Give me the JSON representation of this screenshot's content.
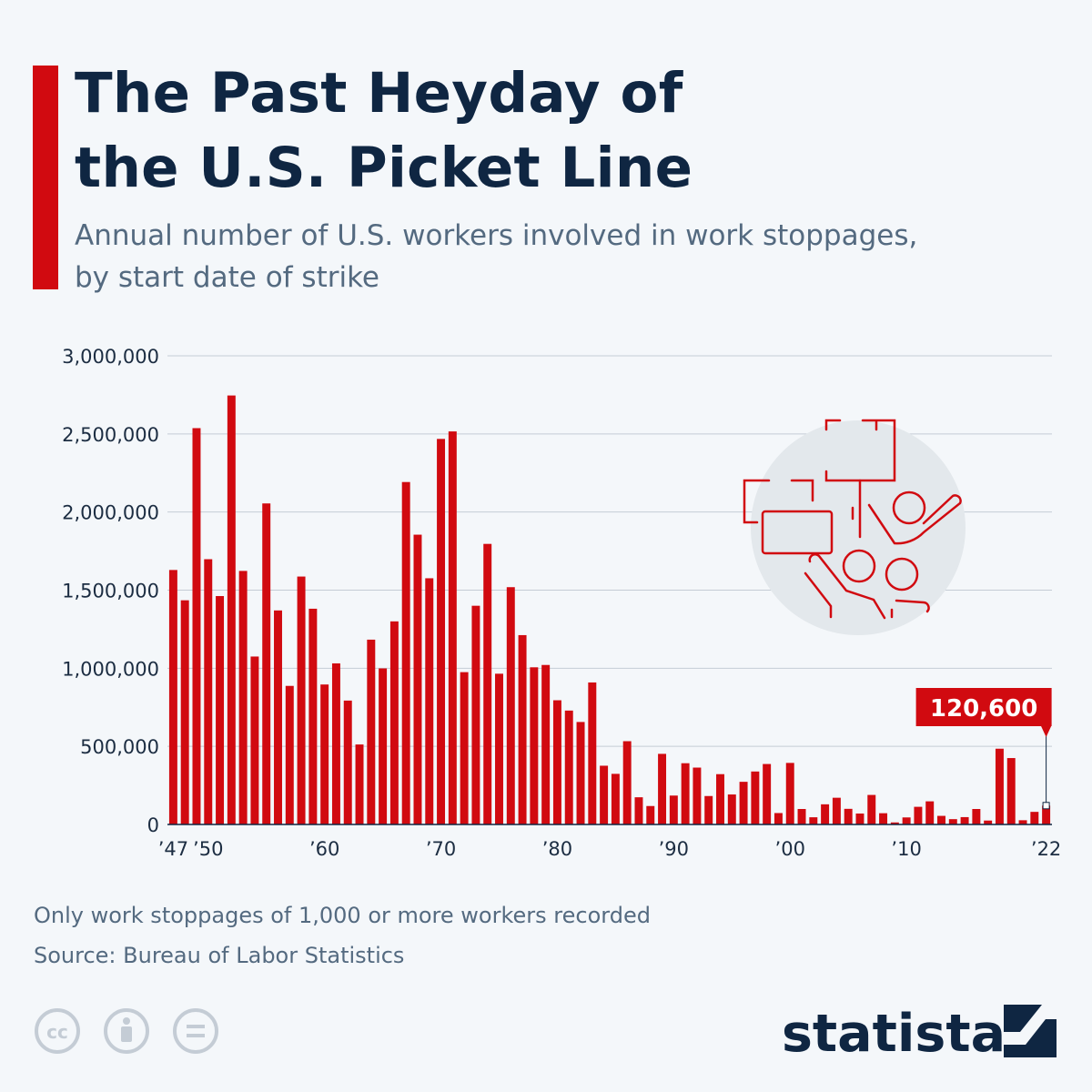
{
  "title_line1": "The Past Heyday of",
  "title_line2": "the U.S. Picket Line",
  "subtitle_line1": "Annual number of U.S. workers involved in work stoppages,",
  "subtitle_line2": "by start date of strike",
  "note": "Only work stoppages of 1,000 or more workers recorded",
  "source": "Source: Bureau of Labor Statistics",
  "brand": "statista",
  "icons": [
    "cc-icon",
    "attribution-icon",
    "no-derivatives-icon",
    "statista-logo-icon",
    "picket-line-illustration-icon"
  ],
  "colors": {
    "bar": "#d10a10",
    "title": "#0f2642",
    "text": "#546a80",
    "background": "#f4f7fa"
  },
  "chart_data": {
    "type": "bar",
    "x": [
      1947,
      1948,
      1949,
      1950,
      1951,
      1952,
      1953,
      1954,
      1955,
      1956,
      1957,
      1958,
      1959,
      1960,
      1961,
      1962,
      1963,
      1964,
      1965,
      1966,
      1967,
      1968,
      1969,
      1970,
      1971,
      1972,
      1973,
      1974,
      1975,
      1976,
      1977,
      1978,
      1979,
      1980,
      1981,
      1982,
      1983,
      1984,
      1985,
      1986,
      1987,
      1988,
      1989,
      1990,
      1991,
      1992,
      1993,
      1994,
      1995,
      1996,
      1997,
      1998,
      1999,
      2000,
      2001,
      2002,
      2003,
      2004,
      2005,
      2006,
      2007,
      2008,
      2009,
      2010,
      2011,
      2012,
      2013,
      2014,
      2015,
      2016,
      2017,
      2018,
      2019,
      2020,
      2021,
      2022
    ],
    "values": [
      1629000,
      1435000,
      2537000,
      1698000,
      1462000,
      2746000,
      1623000,
      1075000,
      2055000,
      1370000,
      887000,
      1587000,
      1381000,
      896000,
      1031000,
      793000,
      512000,
      1183000,
      999000,
      1300000,
      2192000,
      1855000,
      1576000,
      2468000,
      2516000,
      975000,
      1400000,
      1796000,
      965000,
      1519000,
      1212000,
      1006000,
      1021000,
      795000,
      729000,
      656000,
      909000,
      376000,
      324000,
      533000,
      174000,
      118000,
      452000,
      185000,
      392000,
      364000,
      182000,
      322000,
      192000,
      273000,
      339000,
      387000,
      73000,
      394000,
      99000,
      46000,
      129000,
      171000,
      100000,
      70000,
      189000,
      72000,
      13000,
      45000,
      113000,
      148000,
      55000,
      34000,
      47000,
      99000,
      25000,
      485000,
      425000,
      27000,
      80600,
      120600
    ],
    "tick_labels": [
      "’47",
      "’50",
      "’60",
      "’70",
      "’80",
      "’90",
      "’00",
      "’10",
      "’22"
    ],
    "tick_years": [
      1947,
      1950,
      1960,
      1970,
      1980,
      1990,
      2000,
      2010,
      2022
    ],
    "y_ticks": [
      0,
      500000,
      1000000,
      1500000,
      2000000,
      2500000,
      3000000
    ],
    "y_tick_labels": [
      "0",
      "500,000",
      "1,000,000",
      "1,500,000",
      "2,000,000",
      "2,500,000",
      "3,000,000"
    ],
    "ylim": [
      0,
      3000000
    ],
    "annotation": {
      "year": 2022,
      "label": "120,600"
    },
    "grid": true,
    "legend": "none"
  }
}
